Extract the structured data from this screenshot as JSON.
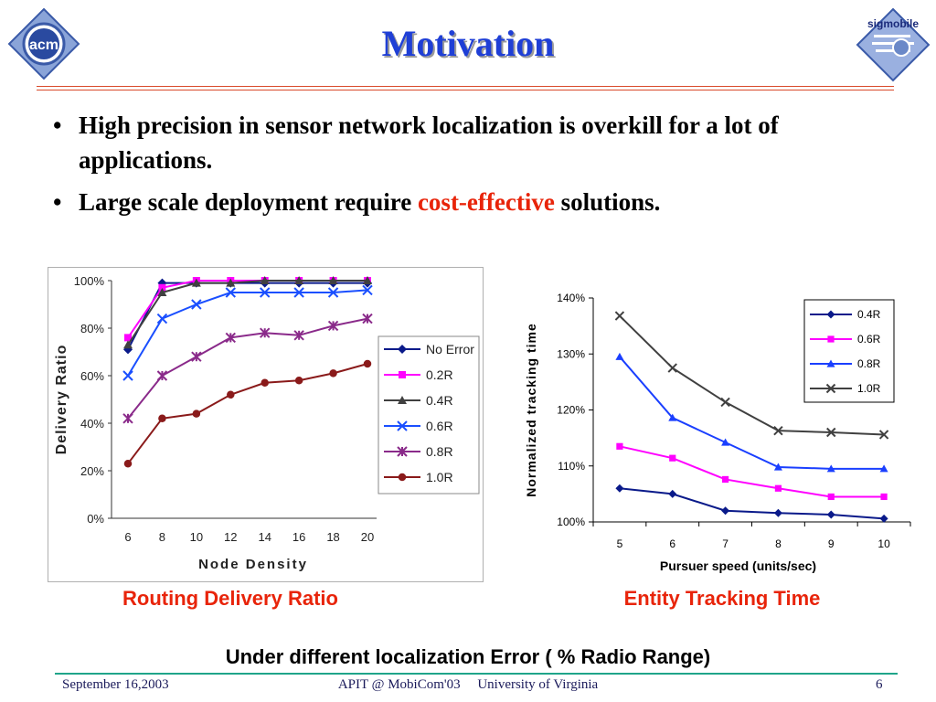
{
  "slide": {
    "title": "Motivation",
    "acm_logo_text": "acm",
    "sigmobile_logo_text": "sigmobile",
    "bullets": [
      {
        "parts": [
          {
            "text": "High precision in sensor network localization is overkill for a lot of applications.",
            "highlight": false
          }
        ]
      },
      {
        "parts": [
          {
            "text": "Large scale deployment require ",
            "highlight": false
          },
          {
            "text": "cost-effective",
            "highlight": true
          },
          {
            "text": " solutions.",
            "highlight": false
          }
        ]
      }
    ],
    "caption_left": "Routing Delivery Ratio",
    "caption_right": "Entity Tracking Time",
    "bottom_note": "Under different localization Error ( % Radio Range)",
    "footer": {
      "date": "September 16,2003",
      "center": "APIT @ MobiCom'03     University of Virginia",
      "page": "6"
    },
    "colors": {
      "title": "#1f3fd6",
      "highlight": "#e8240a",
      "rule": "#d94a2a",
      "footer_rule": "#1fa58a"
    }
  },
  "chart_data": [
    {
      "type": "line",
      "xlabel": "Node Density",
      "ylabel": "Delivery Ratio",
      "x": [
        6,
        8,
        10,
        12,
        14,
        16,
        18,
        20
      ],
      "ylim": [
        0,
        100
      ],
      "yticks": [
        "0%",
        "20%",
        "40%",
        "60%",
        "80%",
        "100%"
      ],
      "grid": false,
      "legend_position": "right",
      "series": [
        {
          "name": "No Error",
          "color": "#0a1a8a",
          "marker": "diamond",
          "values": [
            71,
            99,
            99,
            99,
            99,
            99,
            99,
            99
          ]
        },
        {
          "name": "0.2R",
          "color": "#ff00ff",
          "marker": "square",
          "values": [
            76,
            97,
            100,
            100,
            100,
            100,
            100,
            100
          ]
        },
        {
          "name": "0.4R",
          "color": "#404040",
          "marker": "triangle",
          "values": [
            73,
            95,
            99,
            99,
            100,
            100,
            100,
            100
          ]
        },
        {
          "name": "0.6R",
          "color": "#1a4fff",
          "marker": "x",
          "values": [
            60,
            84,
            90,
            95,
            95,
            95,
            95,
            96
          ]
        },
        {
          "name": "0.8R",
          "color": "#8a2a8a",
          "marker": "star",
          "values": [
            42,
            60,
            68,
            76,
            78,
            77,
            81,
            84
          ]
        },
        {
          "name": "1.0R",
          "color": "#8a1a1a",
          "marker": "circle",
          "values": [
            23,
            42,
            44,
            52,
            57,
            58,
            61,
            65
          ]
        }
      ]
    },
    {
      "type": "line",
      "xlabel": "Pursuer speed (units/sec)",
      "ylabel": "Normalized tracking time",
      "x": [
        5,
        6,
        7,
        8,
        9,
        10
      ],
      "ylim": [
        100,
        140
      ],
      "yticks": [
        "100%",
        "110%",
        "120%",
        "130%",
        "140%"
      ],
      "grid": false,
      "legend_position": "top-right",
      "series": [
        {
          "name": "0.4R",
          "color": "#0a1a8a",
          "marker": "diamond",
          "values": [
            106,
            105,
            102,
            101.6,
            101.3,
            100.6
          ]
        },
        {
          "name": "0.6R",
          "color": "#ff00ff",
          "marker": "square",
          "values": [
            113.5,
            111.4,
            107.6,
            106,
            104.5,
            104.5
          ]
        },
        {
          "name": "0.8R",
          "color": "#1a3fff",
          "marker": "triangle",
          "values": [
            129.5,
            118.6,
            114.2,
            109.8,
            109.5,
            109.5
          ]
        },
        {
          "name": "1.0R",
          "color": "#404040",
          "marker": "x",
          "values": [
            136.8,
            127.5,
            121.4,
            116.3,
            116,
            115.6
          ]
        }
      ]
    }
  ]
}
